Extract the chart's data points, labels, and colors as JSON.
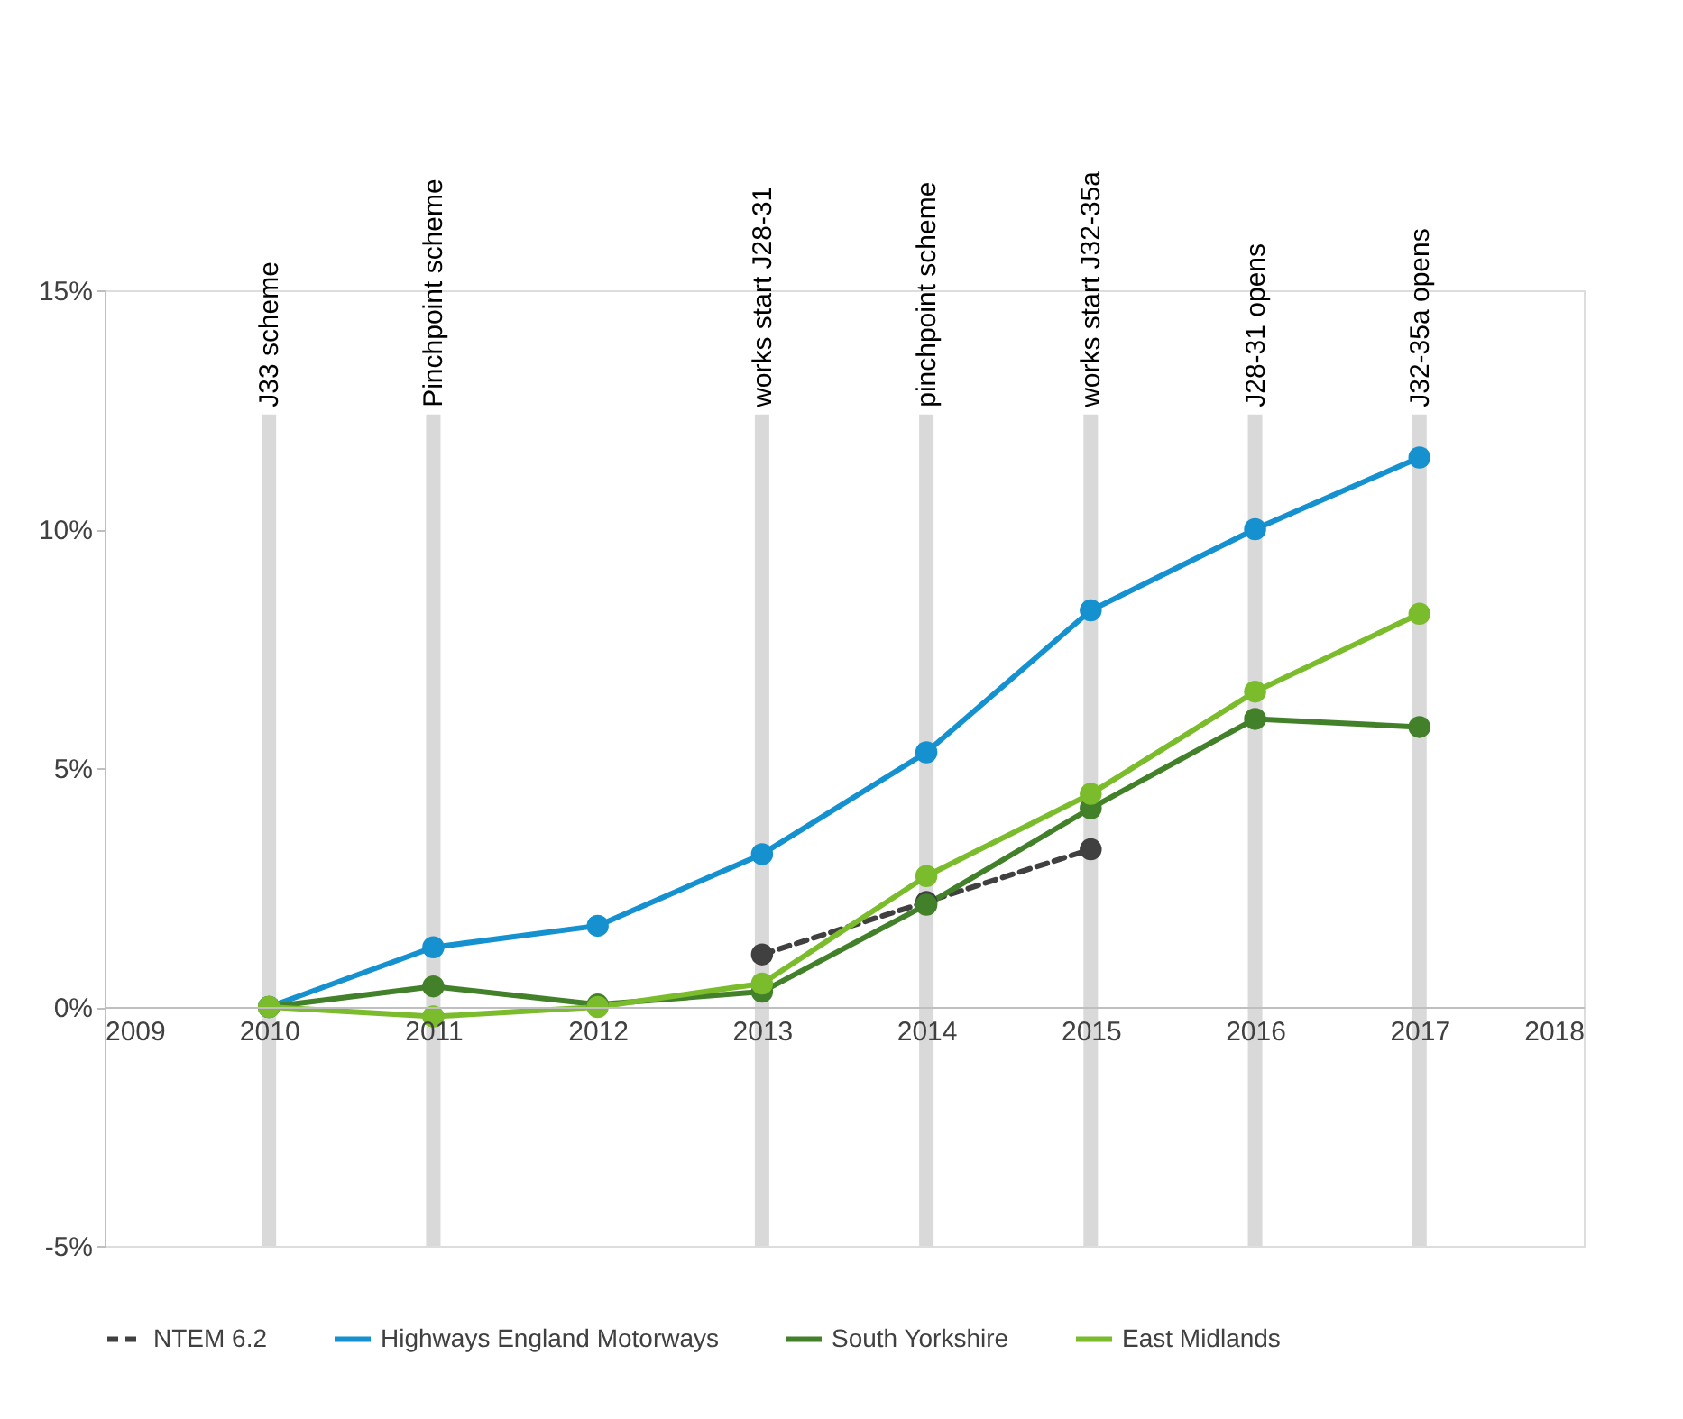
{
  "chart_data": {
    "type": "line",
    "x": [
      2010,
      2011,
      2012,
      2013,
      2014,
      2015,
      2016,
      2017
    ],
    "series": [
      {
        "name": "NTEM 6.2",
        "color": "#404040",
        "line_style": "dashed",
        "values": [
          null,
          null,
          null,
          1.1,
          2.2,
          3.3,
          null,
          null
        ]
      },
      {
        "name": "Highways England Motorways",
        "color": "#1591d0",
        "line_style": "solid",
        "values": [
          0,
          1.25,
          1.7,
          3.2,
          5.33,
          8.3,
          10.0,
          11.5
        ]
      },
      {
        "name": "South Yorkshire",
        "color": "#43802a",
        "line_style": "solid",
        "values": [
          0,
          0.43,
          0.05,
          0.32,
          2.14,
          4.16,
          6.03,
          5.86
        ]
      },
      {
        "name": "East Midlands",
        "color": "#7bbc2c",
        "line_style": "solid",
        "values": [
          0,
          -0.2,
          0,
          0.49,
          2.74,
          4.46,
          6.6,
          8.23
        ]
      }
    ],
    "xlim": [
      2009,
      2018
    ],
    "xticks": [
      2009,
      2010,
      2011,
      2012,
      2013,
      2014,
      2015,
      2016,
      2017,
      2018
    ],
    "ylim": [
      -5,
      15
    ],
    "yticks": [
      {
        "value": -5,
        "label": "-5%"
      },
      {
        "value": 0,
        "label": "0%"
      },
      {
        "value": 5,
        "label": "5%"
      },
      {
        "value": 10,
        "label": "10%"
      },
      {
        "value": 15,
        "label": "15%"
      }
    ],
    "ref_lines": [
      {
        "axis": "x",
        "value": 2010,
        "label": "J33 scheme",
        "color": "#d9d9d9"
      },
      {
        "axis": "x",
        "value": 2011,
        "label": "Pinchpoint scheme",
        "color": "#d9d9d9"
      },
      {
        "axis": "x",
        "value": 2013,
        "label": "works start J28-31",
        "color": "#d9d9d9"
      },
      {
        "axis": "x",
        "value": 2014,
        "label": "pinchpoint scheme",
        "color": "#d9d9d9"
      },
      {
        "axis": "x",
        "value": 2015,
        "label": "works start J32-35a",
        "color": "#d9d9d9"
      },
      {
        "axis": "x",
        "value": 2016,
        "label": "J28-31 opens",
        "color": "#d9d9d9"
      },
      {
        "axis": "x",
        "value": 2017,
        "label": "J32-35a opens",
        "color": "#d9d9d9"
      }
    ],
    "grid": false,
    "legend": "bottom",
    "marker": "circle"
  }
}
